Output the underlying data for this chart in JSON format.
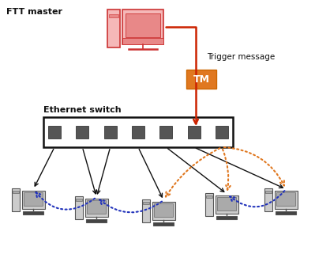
{
  "bg_color": "#ffffff",
  "ftt_master_label": "FTT master",
  "ethernet_switch_label": "Ethernet switch",
  "trigger_message_label": "Trigger message",
  "tm_label": "TM",
  "tm_bg": "#e07820",
  "master_color": "#cc3333",
  "master_fill": "#f5b8b8",
  "master_screen_fill": "#e88888",
  "client_color": "#555555",
  "client_fill": "#cccccc",
  "client_screen_fill": "#aaaaaa",
  "client_base_fill": "#444444",
  "arrow_red": "#cc2200",
  "arrow_blue": "#2233bb",
  "arrow_orange": "#e07820",
  "line_black": "#111111",
  "port_fill": "#555555",
  "switch_edge": "#111111",
  "switch_fill": "#ffffff"
}
